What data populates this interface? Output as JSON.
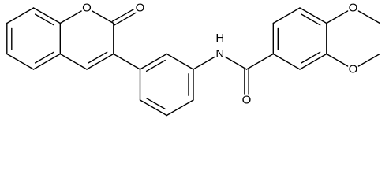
{
  "atom_labels": [
    "O",
    "O",
    "N",
    "H",
    "O",
    "O",
    "O"
  ]
}
